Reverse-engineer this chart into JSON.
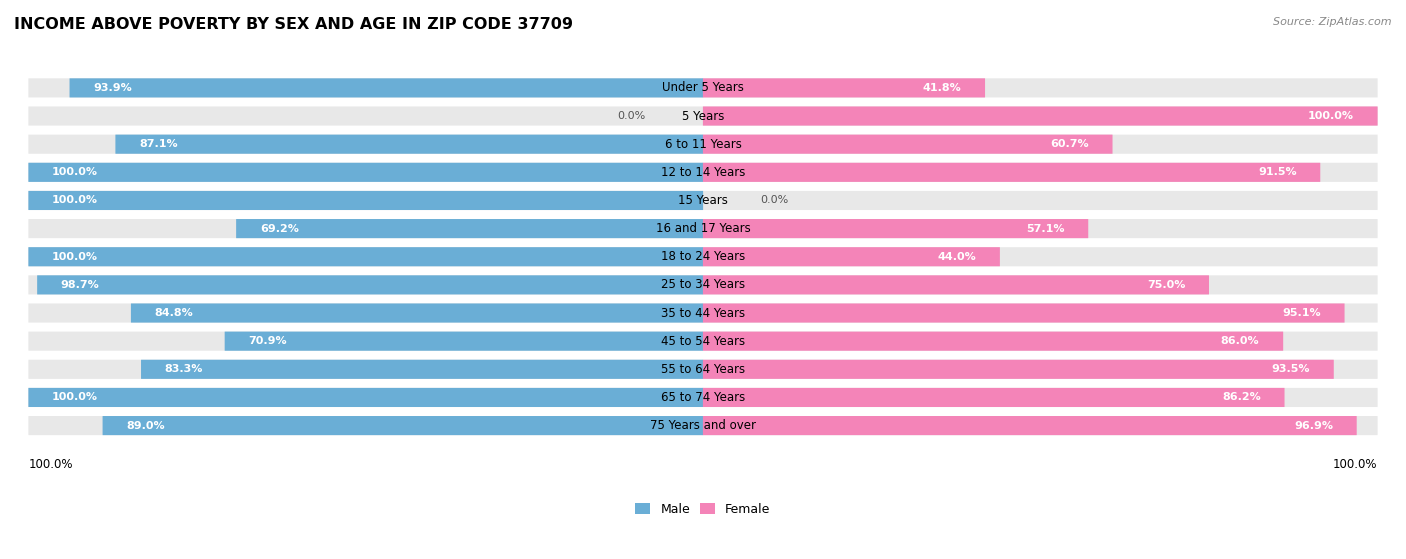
{
  "title": "INCOME ABOVE POVERTY BY SEX AND AGE IN ZIP CODE 37709",
  "source": "Source: ZipAtlas.com",
  "categories": [
    "Under 5 Years",
    "5 Years",
    "6 to 11 Years",
    "12 to 14 Years",
    "15 Years",
    "16 and 17 Years",
    "18 to 24 Years",
    "25 to 34 Years",
    "35 to 44 Years",
    "45 to 54 Years",
    "55 to 64 Years",
    "65 to 74 Years",
    "75 Years and over"
  ],
  "male_values": [
    93.9,
    0.0,
    87.1,
    100.0,
    100.0,
    69.2,
    100.0,
    98.7,
    84.8,
    70.9,
    83.3,
    100.0,
    89.0
  ],
  "female_values": [
    41.8,
    100.0,
    60.7,
    91.5,
    0.0,
    57.1,
    44.0,
    75.0,
    95.1,
    86.0,
    93.5,
    86.2,
    96.9
  ],
  "male_color": "#6aaed6",
  "female_color": "#f484b8",
  "male_label": "Male",
  "female_label": "Female",
  "row_bg_color": "#e8e8e8",
  "title_fontsize": 11.5,
  "label_fontsize": 8.5,
  "value_fontsize": 8.0,
  "footer_label": "100.0%"
}
